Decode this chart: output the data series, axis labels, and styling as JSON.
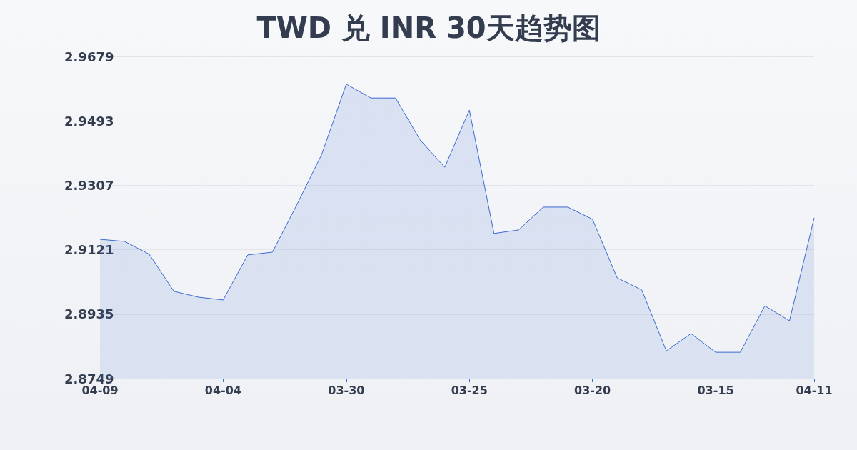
{
  "chart_data": {
    "type": "area",
    "title": "TWD 兑 INR 30天趋势图",
    "categories": [
      "04-09",
      null,
      null,
      null,
      null,
      "04-04",
      null,
      null,
      null,
      null,
      "03-30",
      null,
      null,
      null,
      null,
      "03-25",
      null,
      null,
      null,
      null,
      "03-20",
      null,
      null,
      null,
      null,
      "03-15",
      null,
      null,
      null,
      "04-11"
    ],
    "series": [
      {
        "color": "#3b6bd0",
        "values": [
          2.9151,
          2.9145,
          2.9108,
          2.9001,
          2.8984,
          2.8976,
          2.9106,
          2.9114,
          2.9252,
          2.9396,
          2.9599,
          2.9559,
          2.9559,
          2.9438,
          2.9359,
          2.9524,
          2.9168,
          2.9178,
          2.9244,
          2.9244,
          2.9209,
          2.904,
          2.9005,
          2.8829,
          2.8879,
          2.8825,
          2.8825,
          2.8959,
          2.8916,
          2.9213
        ]
      }
    ],
    "ylim": [
      2.8749,
      2.9679
    ],
    "yticks": [
      2.8749,
      2.8935,
      2.9121,
      2.9307,
      2.9493,
      2.9679
    ],
    "grid": "y",
    "marker": "none"
  }
}
